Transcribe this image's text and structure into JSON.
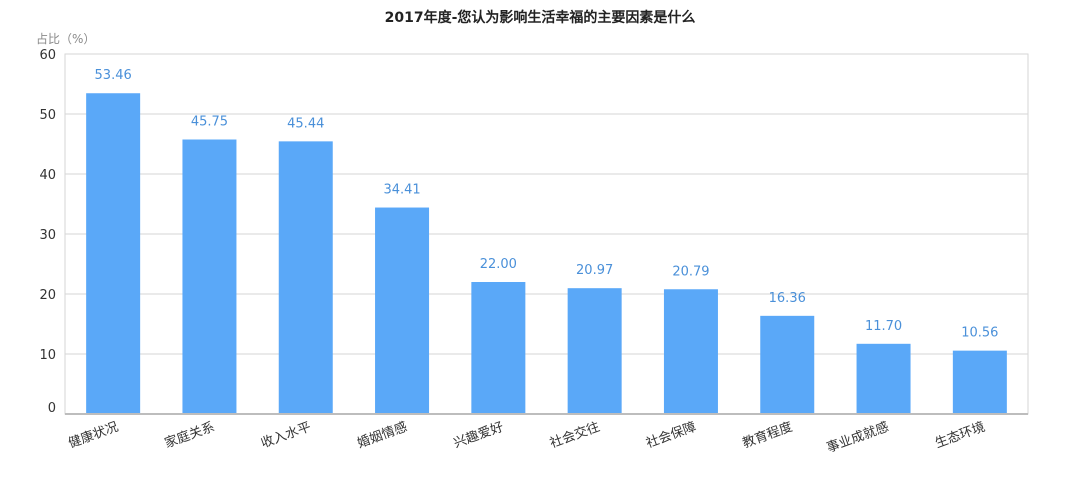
{
  "chart_data": {
    "type": "bar",
    "title": "2017年度-您认为影响生活幸福的主要因素是什么",
    "ylabel": "占比（%）",
    "xlabel": "",
    "ylim": [
      0,
      60
    ],
    "yticks": [
      "0",
      "10",
      "20",
      "30",
      "40",
      "50",
      "60"
    ],
    "ytick_values": [
      0,
      10,
      20,
      30,
      40,
      50,
      60
    ],
    "categories": [
      "健康状况",
      "家庭关系",
      "收入水平",
      "婚姻情感",
      "兴趣爱好",
      "社会交往",
      "社会保障",
      "教育程度",
      "事业成就感",
      "生态环境"
    ],
    "values": [
      53.46,
      45.75,
      45.44,
      34.41,
      22.0,
      20.97,
      20.79,
      16.36,
      11.7,
      10.56
    ],
    "value_labels": [
      "53.46",
      "45.75",
      "45.44",
      "34.41",
      "22.00",
      "20.97",
      "20.79",
      "16.36",
      "11.70",
      "10.56"
    ],
    "grid": true,
    "legend": "none",
    "colors": {
      "bar": "#5aa8f8",
      "label": "#4a90d9",
      "grid": "#d6d6d6",
      "axis": "#bdbdbd"
    }
  }
}
